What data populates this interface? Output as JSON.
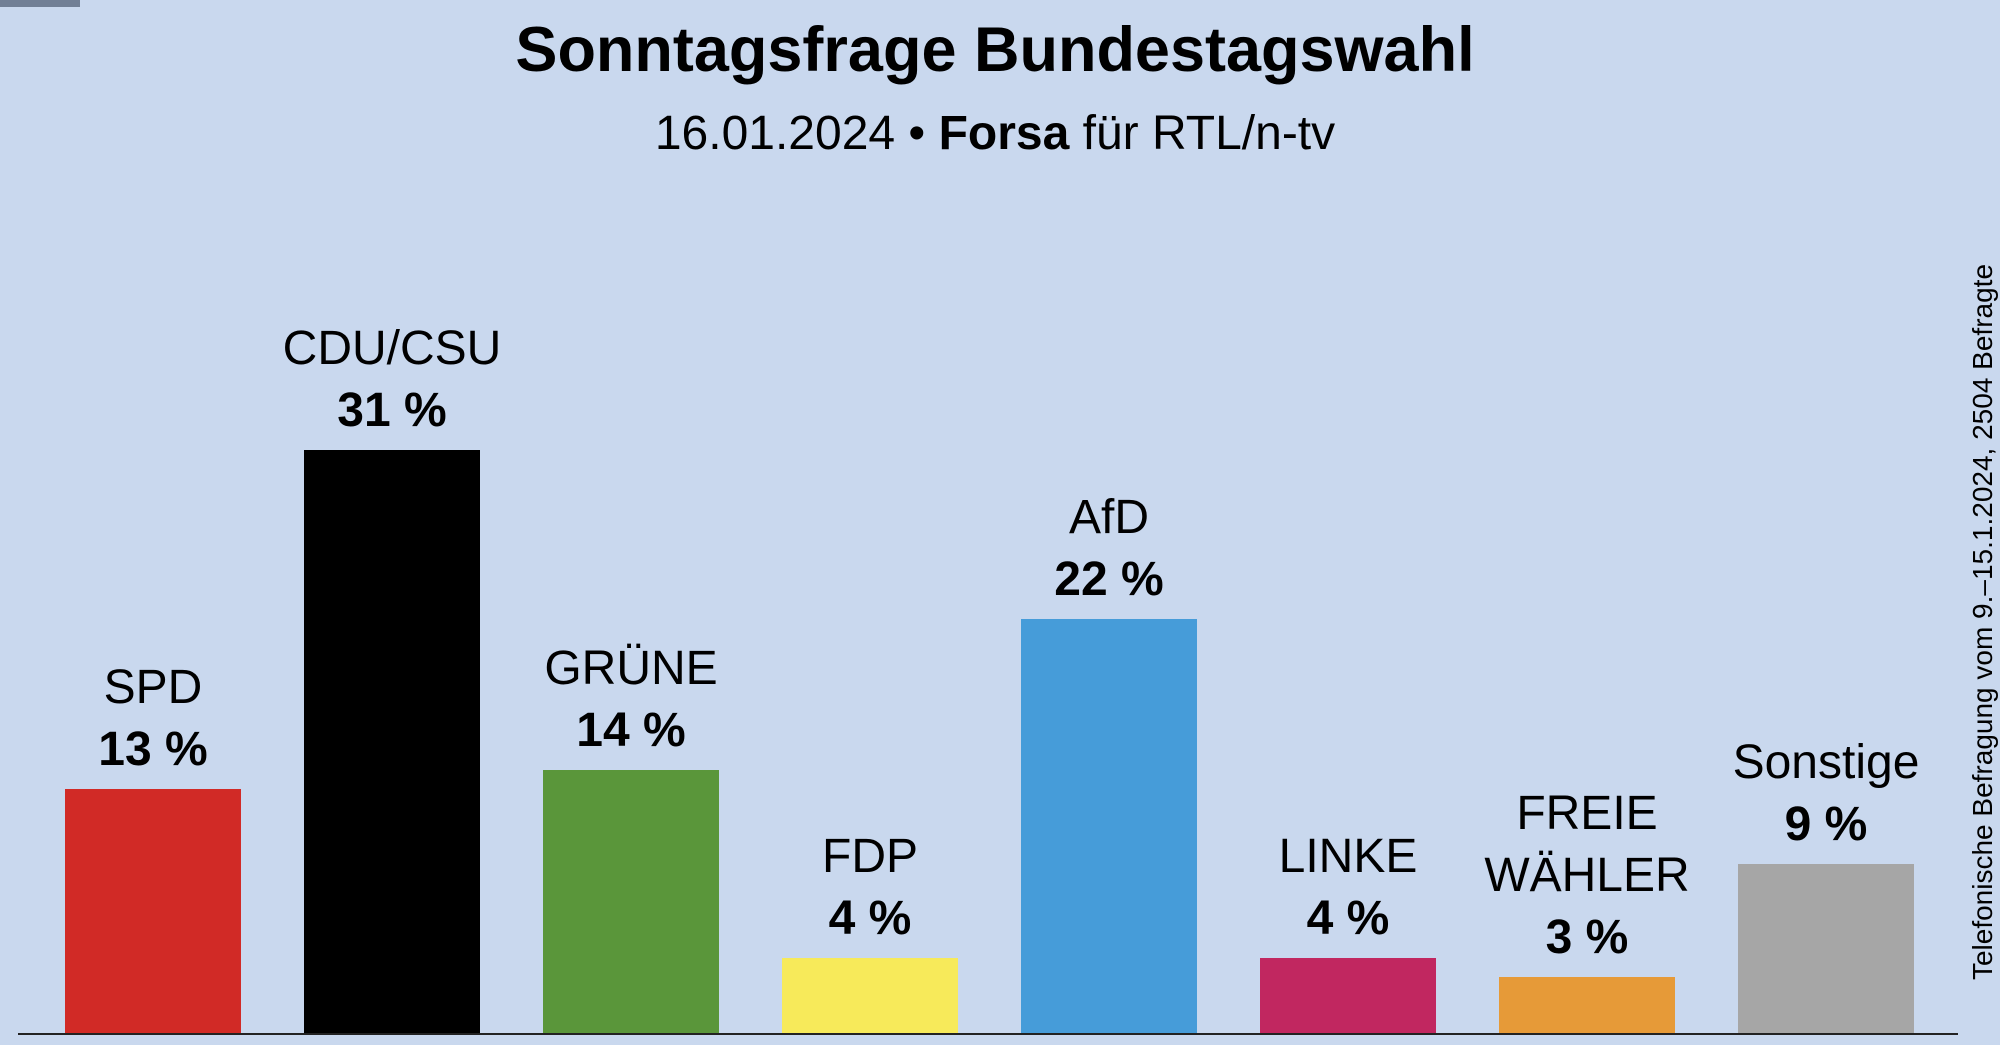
{
  "chart_data": {
    "type": "bar",
    "title": "Sonntagsfrage Bundestagswahl",
    "subtitle_date": "16.01.2024 •",
    "subtitle_source": "Forsa",
    "subtitle_client": "für RTL/n-tv",
    "note": "Telefonische Befragung vom 9.–15.1.2024, 2504 Befragte",
    "categories": [
      "SPD",
      "CDU/CSU",
      "GRÜNE",
      "FDP",
      "AfD",
      "LINKE",
      "FREIE WÄHLER",
      "Sonstige"
    ],
    "category_lines": [
      [
        "SPD"
      ],
      [
        "CDU/CSU"
      ],
      [
        "GRÜNE"
      ],
      [
        "FDP"
      ],
      [
        "AfD"
      ],
      [
        "LINKE"
      ],
      [
        "FREIE",
        "WÄHLER"
      ],
      [
        "Sonstige"
      ]
    ],
    "values": [
      13,
      31,
      14,
      4,
      22,
      4,
      3,
      9
    ],
    "value_labels": [
      "13 %",
      "31 %",
      "14 %",
      "4 %",
      "22 %",
      "4 %",
      "3 %",
      "9 %"
    ],
    "colors": [
      "#d12a26",
      "#000000",
      "#5a963a",
      "#f7ea5a",
      "#469cd9",
      "#c12760",
      "#e69a38",
      "#a6a6a6"
    ],
    "unit": "%",
    "xlabel": "",
    "ylabel": "",
    "ylim": [
      0,
      35
    ],
    "grid": false
  }
}
